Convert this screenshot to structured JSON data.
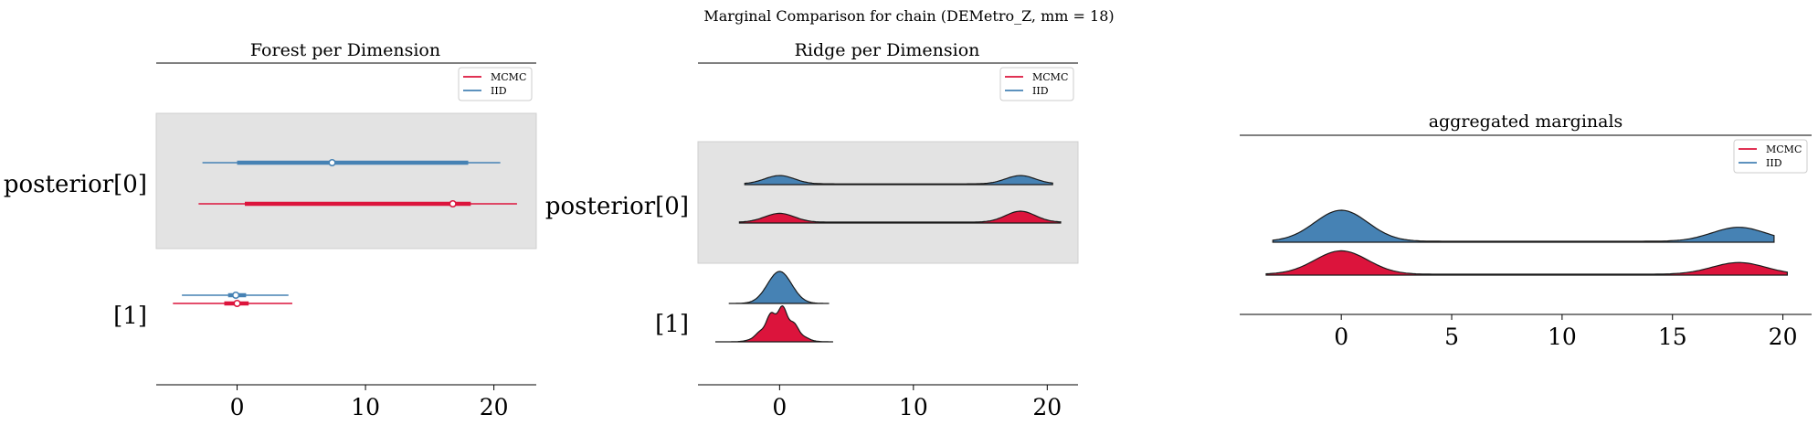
{
  "figure": {
    "suptitle": "Marginal Comparison for chain (DEMetro_Z, mm = 18)"
  },
  "colors": {
    "mcmc": "#dc143c",
    "iid": "#4682b4",
    "band": "#e3e3e3"
  },
  "legend": {
    "mcmc": "MCMC",
    "iid": "IID"
  },
  "chart_data": [
    {
      "type": "forest",
      "title": "Forest per Dimension",
      "x_ticks": [
        "0",
        "10",
        "20"
      ],
      "xlim": [
        -6.3,
        23.3
      ],
      "y_labels": [
        "posterior[0]",
        "[1]"
      ],
      "legend_position": "top-right",
      "series": [
        {
          "name": "MCMC",
          "rows": [
            {
              "label": "posterior[0]",
              "hdi94": [
                -3.0,
                21.8
              ],
              "hdi50": [
                0.6,
                18.2
              ],
              "median": 16.8
            },
            {
              "label": "[1]",
              "hdi94": [
                -5.0,
                4.3
              ],
              "hdi50": [
                -1.0,
                0.9
              ],
              "median": 0.0
            }
          ]
        },
        {
          "name": "IID",
          "rows": [
            {
              "label": "posterior[0]",
              "hdi94": [
                -2.7,
                20.5
              ],
              "hdi50": [
                0.0,
                18.0
              ],
              "median": 7.4
            },
            {
              "label": "[1]",
              "hdi94": [
                -4.3,
                4.0
              ],
              "hdi50": [
                -0.7,
                0.7
              ],
              "median": -0.1
            }
          ]
        }
      ]
    },
    {
      "type": "ridge",
      "title": "Ridge per Dimension",
      "x_ticks": [
        "0",
        "10",
        "20"
      ],
      "xlim": [
        -6.1,
        22.3
      ],
      "y_labels": [
        "posterior[0]",
        "[1]"
      ],
      "legend_position": "top-right",
      "series": [
        {
          "name": "IID",
          "rows": [
            {
              "label": "posterior[0]",
              "range": [
                -2.6,
                20.4
              ],
              "modes": [
                {
                  "mu": 0,
                  "sd": 1.1,
                  "w": 0.65
                },
                {
                  "mu": 18,
                  "sd": 1.1,
                  "w": 0.65
                }
              ],
              "base": 0.06
            },
            {
              "label": "[1]",
              "range": [
                -3.8,
                3.7
              ],
              "modes": [
                {
                  "mu": 0,
                  "sd": 0.9,
                  "w": 1.0
                }
              ],
              "base": 0.0
            }
          ]
        },
        {
          "name": "MCMC",
          "rows": [
            {
              "label": "posterior[0]",
              "range": [
                -3.0,
                21.0
              ],
              "modes": [
                {
                  "mu": 0,
                  "sd": 1.1,
                  "w": 0.6
                },
                {
                  "mu": 18,
                  "sd": 1.1,
                  "w": 0.75
                }
              ],
              "base": 0.06
            },
            {
              "label": "[1]",
              "range": [
                -4.8,
                4.0
              ],
              "modes": [
                {
                  "mu": 0,
                  "sd": 1.0,
                  "w": 1.0
                }
              ],
              "base": 0.0
            }
          ]
        }
      ]
    },
    {
      "type": "ridge",
      "title": "aggregated marginals",
      "x_ticks": [
        "0",
        "5",
        "10",
        "15",
        "20"
      ],
      "xlim": [
        -4.6,
        21.3
      ],
      "legend_position": "top-right",
      "series": [
        {
          "name": "IID",
          "range": [
            -3.1,
            19.6
          ],
          "modes": [
            {
              "mu": 0,
              "sd": 1.2,
              "w": 1.0
            },
            {
              "mu": 18,
              "sd": 1.2,
              "w": 0.45
            }
          ],
          "base": 0.03
        },
        {
          "name": "MCMC",
          "range": [
            -3.4,
            20.2
          ],
          "modes": [
            {
              "mu": 0,
              "sd": 1.2,
              "w": 0.8
            },
            {
              "mu": 18,
              "sd": 1.2,
              "w": 0.4
            }
          ],
          "base": 0.03
        }
      ]
    }
  ]
}
